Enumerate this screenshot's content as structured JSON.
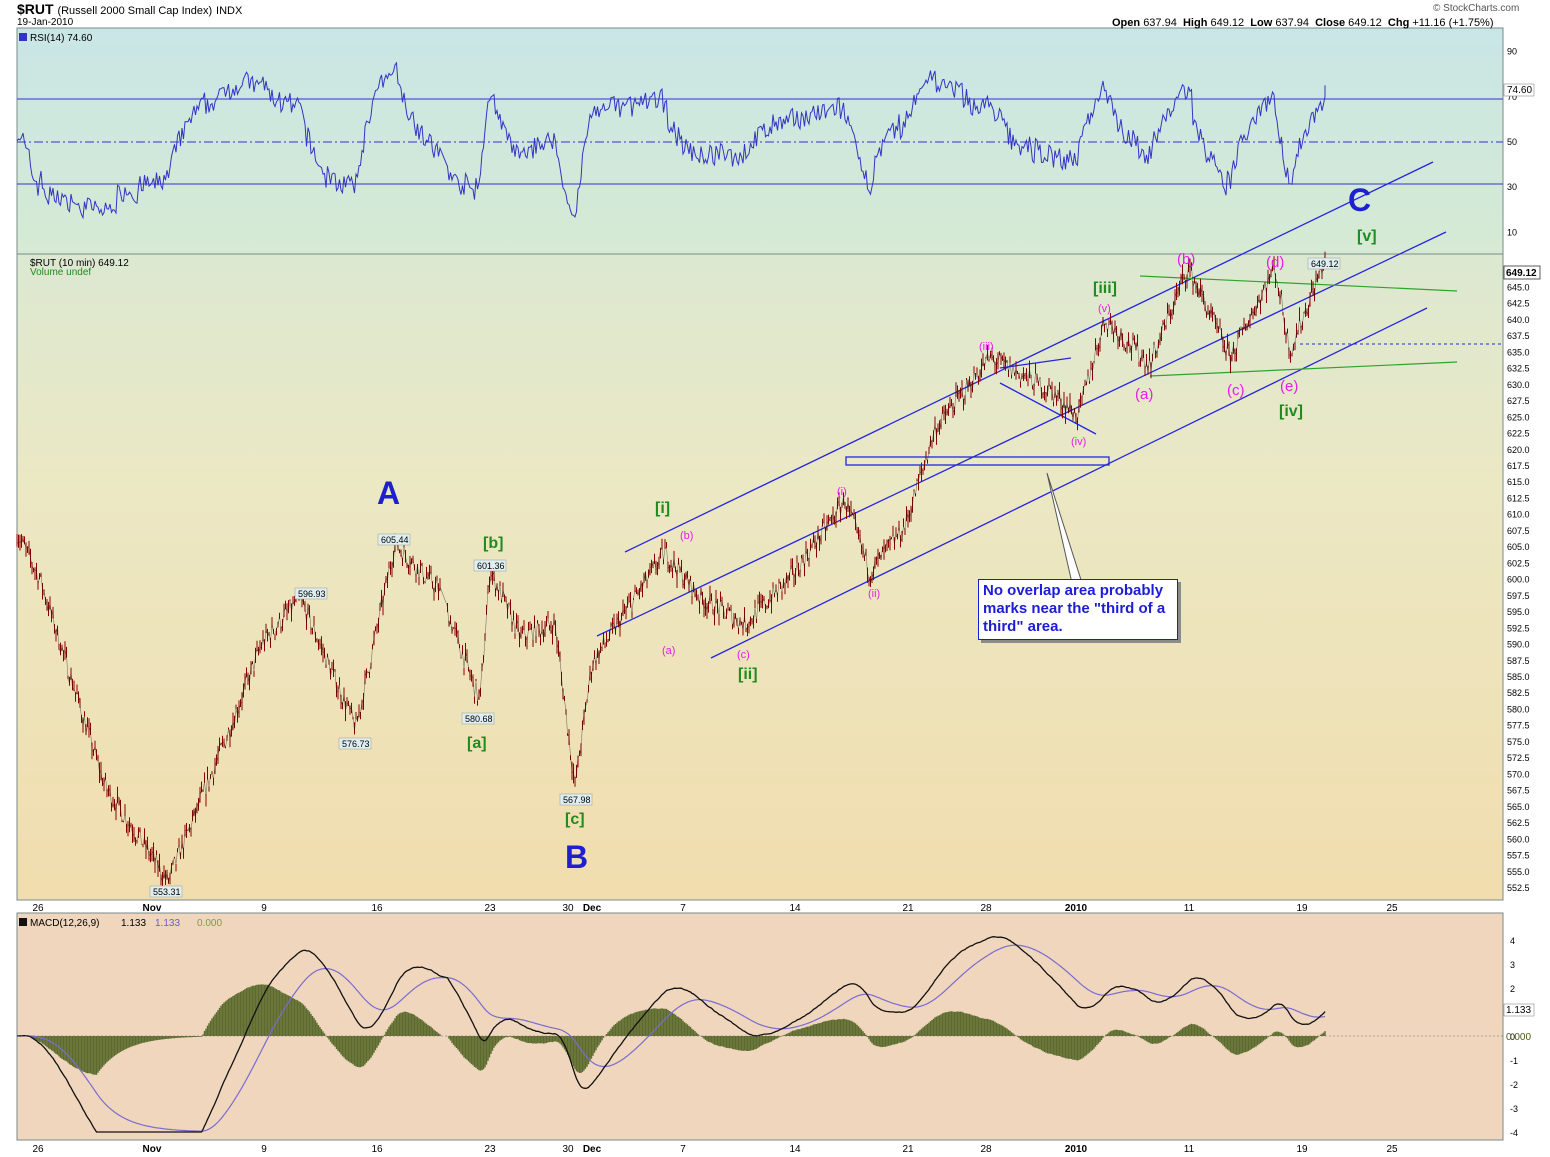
{
  "header": {
    "symbol_title": "$RUT",
    "symbol_desc": "(Russell 2000 Small Cap Index)",
    "exchange": "INDX",
    "date": "19-Jan-2010",
    "open_label": "Open",
    "open": "637.94",
    "high_label": "High",
    "high": "649.12",
    "low_label": "Low",
    "low": "637.94",
    "close_label": "Close",
    "close": "649.12",
    "chg_label": "Chg",
    "chg": "+11.16 (+1.75%)",
    "watermark": "© StockCharts.com"
  },
  "rsi": {
    "legend": "RSI(14) 74.60",
    "ticks": [
      "90",
      "70",
      "50",
      "30",
      "10"
    ],
    "current": "74.60",
    "ylim": [
      0,
      100
    ],
    "overbought": 70,
    "oversold": 30,
    "mid": 50
  },
  "price": {
    "legend": "$RUT (10 min) 649.12",
    "volume_legend": "Volume undef",
    "last_value": "649.12",
    "ticks": [
      "647.5",
      "645.0",
      "642.5",
      "640.0",
      "637.5",
      "635.0",
      "632.5",
      "630.0",
      "627.5",
      "625.0",
      "622.5",
      "620.0",
      "617.5",
      "615.0",
      "612.5",
      "610.0",
      "607.5",
      "605.0",
      "602.5",
      "600.0",
      "597.5",
      "595.0",
      "592.5",
      "590.0",
      "587.5",
      "585.0",
      "582.5",
      "580.0",
      "577.5",
      "575.0",
      "572.5",
      "570.0",
      "567.5",
      "565.0",
      "562.5",
      "560.0",
      "557.5",
      "555.0",
      "552.5"
    ]
  },
  "macd": {
    "legend_label": "MACD(12,26,9)",
    "legend_macd": "1.133",
    "legend_signal": "1.133",
    "legend_hist": "0.000",
    "ticks": [
      "4",
      "3",
      "2",
      "1",
      "0",
      "-1",
      "-2",
      "-3",
      "-4"
    ],
    "current_macd": "1.133",
    "current_hist": "0.000"
  },
  "xaxis_labels": [
    "26",
    "Nov",
    "9",
    "16",
    "23",
    "30",
    "Dec",
    "7",
    "14",
    "21",
    "28",
    "2010",
    "11",
    "19",
    "25"
  ],
  "annotations": {
    "waves_major": [
      "A",
      "B",
      "C"
    ],
    "waves_green": [
      "[i]",
      "[ii]",
      "[iii]",
      "[iv]",
      "[v]",
      "[a]",
      "[b]",
      "[c]"
    ],
    "waves_magenta_small": [
      "(i)",
      "(ii)",
      "(iii)",
      "(iv)",
      "(v)",
      "(a)",
      "(b)",
      "(c)"
    ],
    "waves_magenta_large": [
      "(a)",
      "(b)",
      "(c)",
      "(d)",
      "(e)"
    ],
    "price_labels": [
      "605.44",
      "601.36",
      "596.93",
      "580.68",
      "576.73",
      "567.98",
      "553.31",
      "649.12"
    ],
    "callout_text": "No overlap area probably marks near the \"third of a third\" area."
  },
  "chart_data": [
    {
      "type": "line",
      "title": "RSI(14)",
      "ylim": [
        0,
        100
      ],
      "reference_lines": [
        30,
        50,
        70
      ],
      "current_value": 74.6,
      "x_labels": [
        "26",
        "Nov",
        "9",
        "16",
        "23",
        "30",
        "Dec",
        "7",
        "14",
        "21",
        "28",
        "2010",
        "11",
        "19",
        "25"
      ]
    },
    {
      "type": "line",
      "title": "$RUT (10 min)",
      "ylim": [
        550.5,
        650
      ],
      "series": [
        {
          "name": "$RUT",
          "x": [
            "26",
            "Nov",
            "9",
            "16",
            "23",
            "30",
            "Dec",
            "7",
            "14",
            "21",
            "28",
            "2010",
            "11",
            "19"
          ],
          "values": [
            605,
            557,
            590,
            604,
            583,
            570,
            592,
            599,
            606,
            620,
            633,
            630,
            646,
            649.12
          ]
        }
      ],
      "swing_points": [
        {
          "label": "605.44",
          "value": 605.44
        },
        {
          "label": "601.36",
          "value": 601.36
        },
        {
          "label": "596.93",
          "value": 596.93
        },
        {
          "label": "580.68",
          "value": 580.68
        },
        {
          "label": "576.73",
          "value": 576.73
        },
        {
          "label": "567.98",
          "value": 567.98
        },
        {
          "label": "553.31",
          "value": 553.31
        },
        {
          "label": "649.12",
          "value": 649.12
        }
      ],
      "last_close": 649.12
    },
    {
      "type": "line",
      "title": "MACD(12,26,9)",
      "ylim": [
        -4.2,
        4.6
      ],
      "series": [
        {
          "name": "MACD",
          "current": 1.133
        },
        {
          "name": "Signal",
          "current": 1.133
        },
        {
          "name": "Histogram",
          "current": 0.0
        }
      ]
    }
  ],
  "colors": {
    "rsi_bg_top": "#c9e6e6",
    "rsi_bg_bottom": "#d6ead3",
    "price_bg_top": "#dce8d1",
    "price_bg_bottom": "#f1ddae",
    "macd_bg": "#f0d6bd",
    "indicator_line": "#3434c4",
    "price_bar": "#8a0000",
    "channel": "#2323e0",
    "green_line": "#2da52d",
    "green_label": "#1e8c1e",
    "magenta_label": "#e61ee6",
    "major_label": "#1e1ed2",
    "histogram": "#5b6b2e"
  }
}
